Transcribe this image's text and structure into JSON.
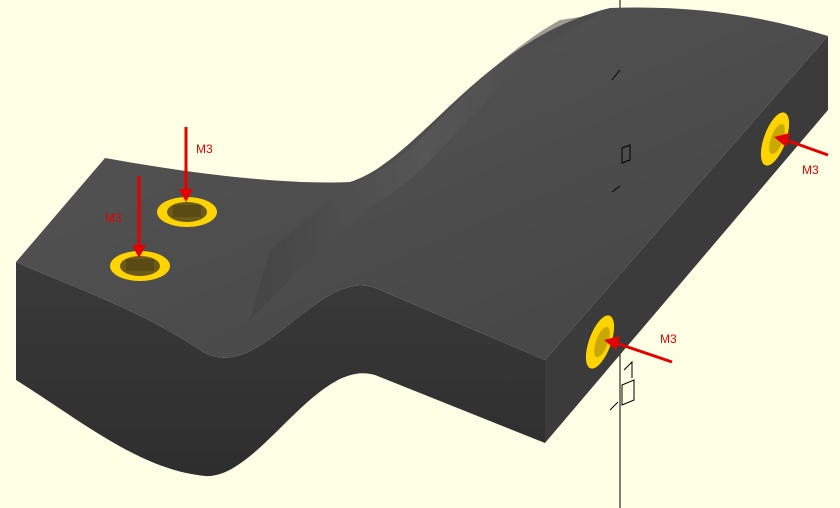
{
  "viewport": {
    "background": "#ffffe5"
  },
  "model": {
    "top_color": "#4a4a4a",
    "side_color": "#3e3e3e",
    "front_color": "#333333",
    "hole_color": "#ffd400",
    "hole_inner": "#6b5a1a"
  },
  "annotations": {
    "arrow_color": "#e60000",
    "labels": [
      "M3",
      "M3",
      "M3",
      "M3"
    ]
  },
  "axes": {
    "color": "#000000"
  }
}
